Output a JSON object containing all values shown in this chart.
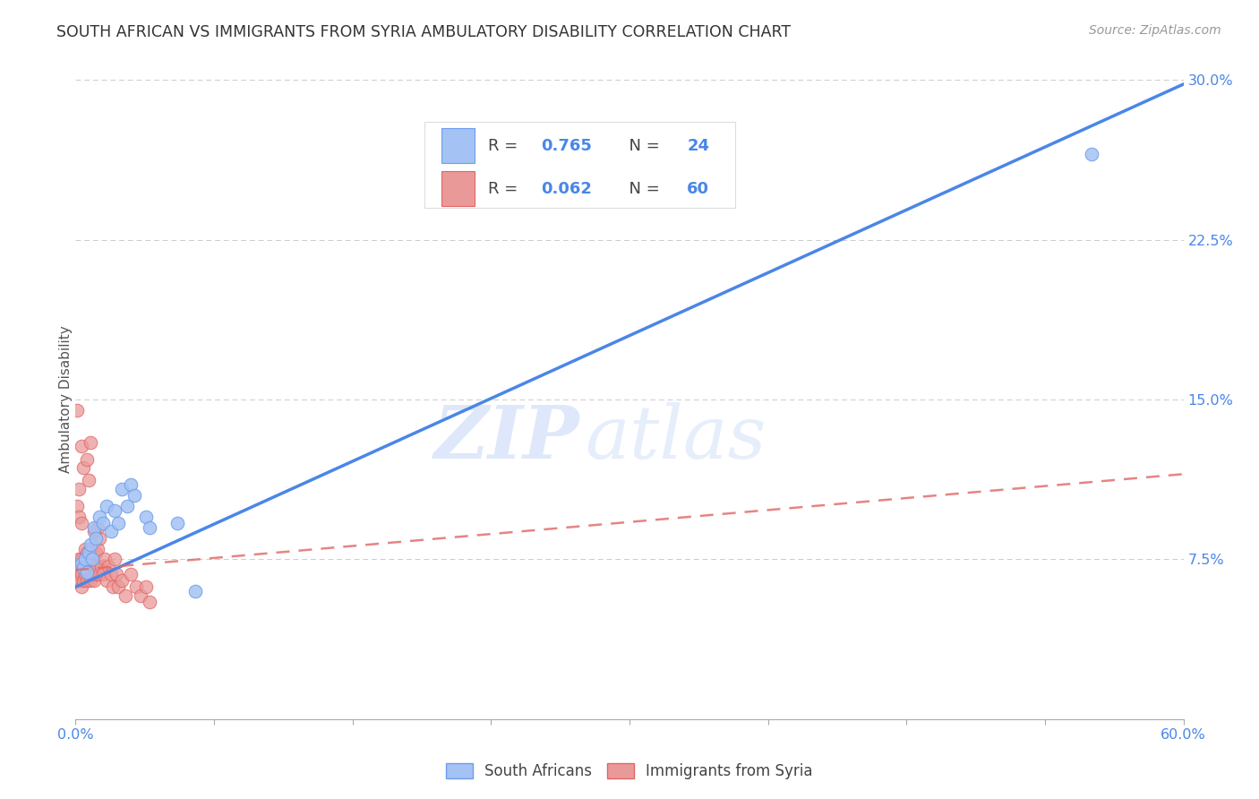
{
  "title": "SOUTH AFRICAN VS IMMIGRANTS FROM SYRIA AMBULATORY DISABILITY CORRELATION CHART",
  "source": "Source: ZipAtlas.com",
  "ylabel": "Ambulatory Disability",
  "xlim": [
    0.0,
    0.6
  ],
  "ylim": [
    0.0,
    0.3
  ],
  "xticks": [
    0.0,
    0.075,
    0.15,
    0.225,
    0.3,
    0.375,
    0.45,
    0.525,
    0.6
  ],
  "yticks_right": [
    0.075,
    0.15,
    0.225,
    0.3
  ],
  "yticklabels_right": [
    "7.5%",
    "15.0%",
    "22.5%",
    "30.0%"
  ],
  "color_blue": "#a4c2f4",
  "color_pink": "#ea9999",
  "color_blue_edge": "#6d9eeb",
  "color_pink_edge": "#e06666",
  "color_blue_line": "#4a86e8",
  "color_pink_line": "#e06666",
  "label1": "South Africans",
  "label2": "Immigrants from Syria",
  "watermark_zip": "ZIP",
  "watermark_atlas": "atlas",
  "blue_line_x": [
    0.0,
    0.6
  ],
  "blue_line_y": [
    0.062,
    0.298
  ],
  "pink_line_x": [
    0.0,
    0.6
  ],
  "pink_line_y": [
    0.07,
    0.115
  ],
  "blue_points": [
    [
      0.003,
      0.073
    ],
    [
      0.004,
      0.071
    ],
    [
      0.005,
      0.075
    ],
    [
      0.006,
      0.069
    ],
    [
      0.007,
      0.078
    ],
    [
      0.008,
      0.082
    ],
    [
      0.009,
      0.075
    ],
    [
      0.01,
      0.09
    ],
    [
      0.011,
      0.085
    ],
    [
      0.013,
      0.095
    ],
    [
      0.015,
      0.092
    ],
    [
      0.017,
      0.1
    ],
    [
      0.019,
      0.088
    ],
    [
      0.021,
      0.098
    ],
    [
      0.023,
      0.092
    ],
    [
      0.025,
      0.108
    ],
    [
      0.028,
      0.1
    ],
    [
      0.03,
      0.11
    ],
    [
      0.032,
      0.105
    ],
    [
      0.038,
      0.095
    ],
    [
      0.04,
      0.09
    ],
    [
      0.055,
      0.092
    ],
    [
      0.065,
      0.06
    ],
    [
      0.55,
      0.265
    ]
  ],
  "pink_points": [
    [
      0.001,
      0.068
    ],
    [
      0.001,
      0.072
    ],
    [
      0.002,
      0.065
    ],
    [
      0.002,
      0.07
    ],
    [
      0.002,
      0.075
    ],
    [
      0.003,
      0.062
    ],
    [
      0.003,
      0.068
    ],
    [
      0.003,
      0.075
    ],
    [
      0.004,
      0.065
    ],
    [
      0.004,
      0.072
    ],
    [
      0.005,
      0.068
    ],
    [
      0.005,
      0.075
    ],
    [
      0.005,
      0.08
    ],
    [
      0.006,
      0.065
    ],
    [
      0.006,
      0.072
    ],
    [
      0.006,
      0.078
    ],
    [
      0.007,
      0.068
    ],
    [
      0.007,
      0.075
    ],
    [
      0.008,
      0.065
    ],
    [
      0.008,
      0.072
    ],
    [
      0.008,
      0.08
    ],
    [
      0.009,
      0.068
    ],
    [
      0.009,
      0.075
    ],
    [
      0.01,
      0.065
    ],
    [
      0.01,
      0.072
    ],
    [
      0.011,
      0.068
    ],
    [
      0.011,
      0.078
    ],
    [
      0.012,
      0.072
    ],
    [
      0.012,
      0.08
    ],
    [
      0.013,
      0.068
    ],
    [
      0.013,
      0.085
    ],
    [
      0.014,
      0.072
    ],
    [
      0.015,
      0.068
    ],
    [
      0.016,
      0.075
    ],
    [
      0.017,
      0.065
    ],
    [
      0.018,
      0.072
    ],
    [
      0.019,
      0.068
    ],
    [
      0.02,
      0.062
    ],
    [
      0.021,
      0.075
    ],
    [
      0.022,
      0.068
    ],
    [
      0.023,
      0.062
    ],
    [
      0.025,
      0.065
    ],
    [
      0.027,
      0.058
    ],
    [
      0.03,
      0.068
    ],
    [
      0.033,
      0.062
    ],
    [
      0.035,
      0.058
    ],
    [
      0.038,
      0.062
    ],
    [
      0.04,
      0.055
    ],
    [
      0.001,
      0.145
    ],
    [
      0.003,
      0.128
    ],
    [
      0.004,
      0.118
    ],
    [
      0.002,
      0.108
    ],
    [
      0.006,
      0.122
    ],
    [
      0.008,
      0.13
    ],
    [
      0.007,
      0.112
    ],
    [
      0.001,
      0.1
    ],
    [
      0.002,
      0.095
    ],
    [
      0.003,
      0.092
    ],
    [
      0.012,
      0.09
    ],
    [
      0.01,
      0.088
    ]
  ]
}
